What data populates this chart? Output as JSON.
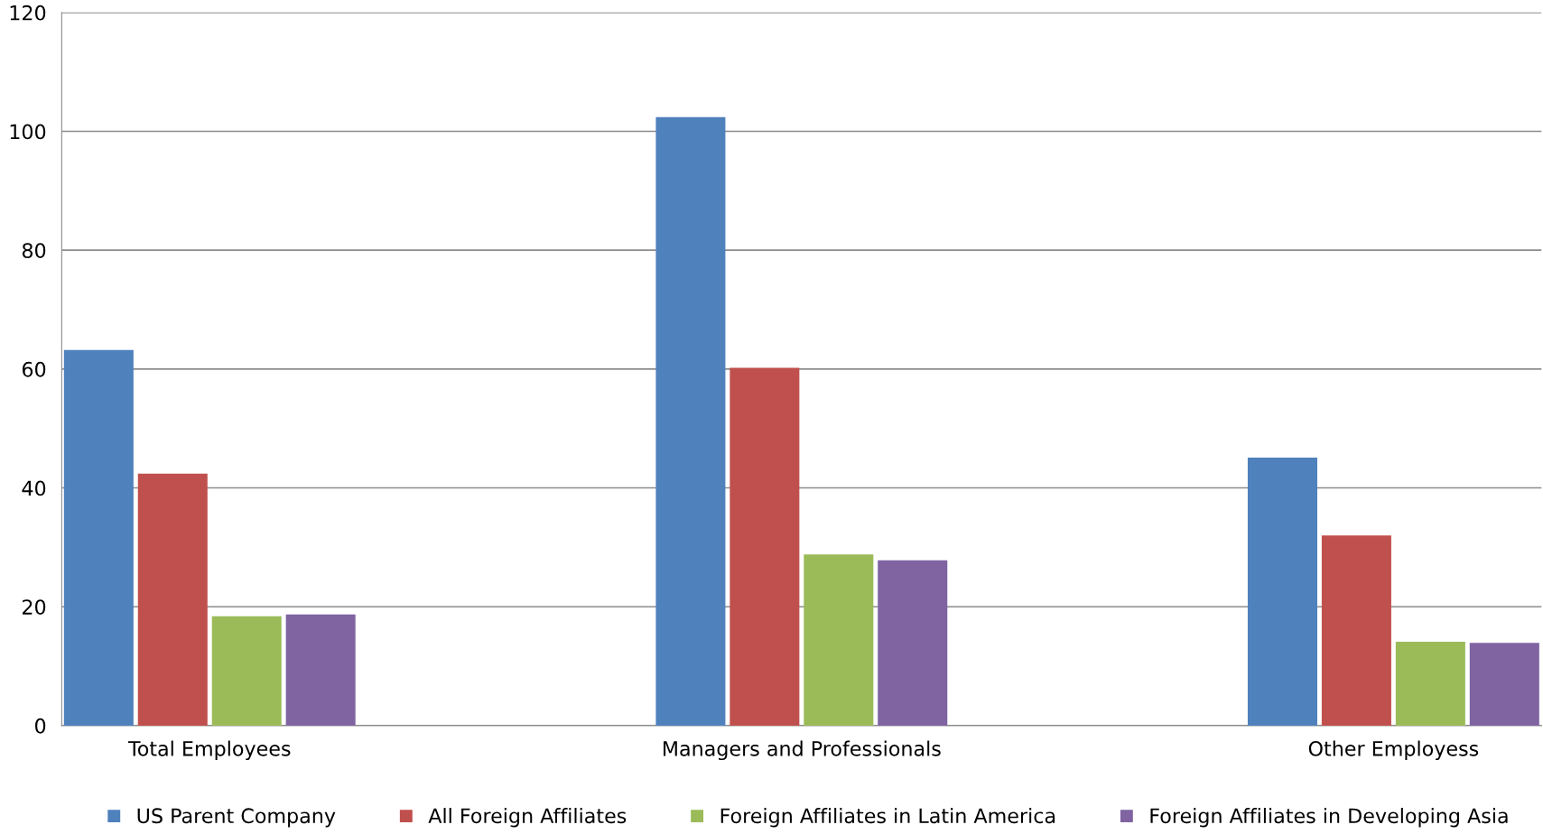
{
  "chart_data": {
    "type": "bar",
    "categories": [
      "Total Employees",
      "Managers and Professionals",
      "Other Employess"
    ],
    "series": [
      {
        "name": "US Parent Company",
        "color": "#4f81bd",
        "values": [
          63.2,
          102.4,
          45.1
        ]
      },
      {
        "name": "All Foreign Affiliates",
        "color": "#c0504d",
        "values": [
          42.4,
          60.2,
          32.0
        ]
      },
      {
        "name": "Foreign Affiliates in Latin America",
        "color": "#9bbb59",
        "values": [
          18.4,
          28.8,
          14.1
        ]
      },
      {
        "name": "Foreign Affiliates in Developing Asia",
        "color": "#8064a2",
        "values": [
          18.7,
          27.8,
          13.9
        ]
      }
    ],
    "ylim": [
      0,
      120
    ],
    "yticks": [
      0,
      20,
      40,
      60,
      80,
      100,
      120
    ],
    "grid": "y",
    "legend": "bottom"
  }
}
